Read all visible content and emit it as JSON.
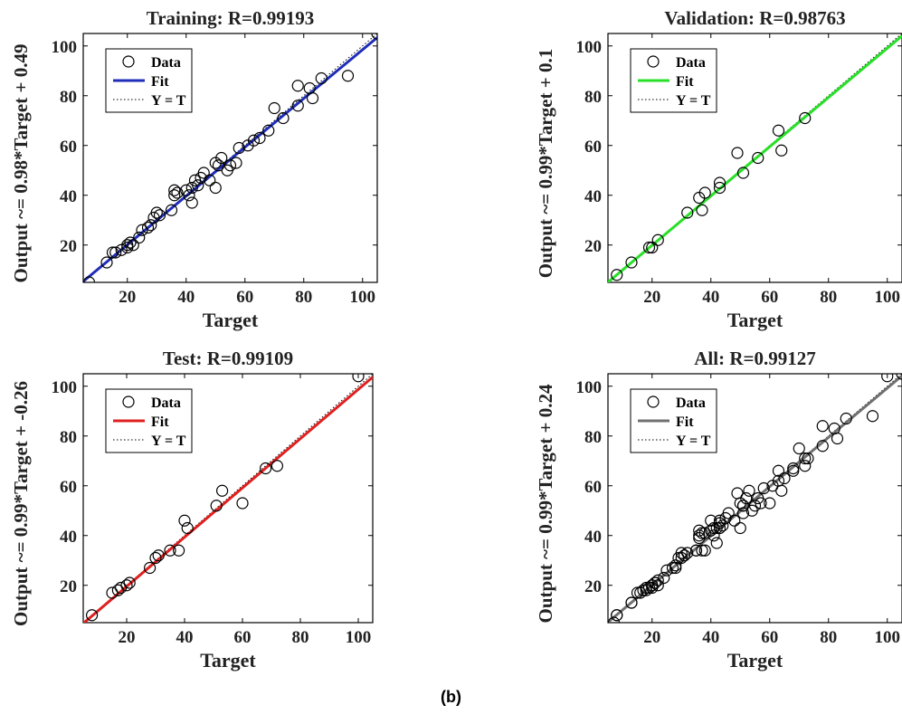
{
  "figure_caption": "(b)",
  "chart_data": [
    {
      "type": "scatter",
      "title": "Training: R=0.99193",
      "xlabel": "Target",
      "ylabel": "Output ~= 0.98*Target + 0.49",
      "xlim": [
        5,
        105
      ],
      "ylim": [
        5,
        105
      ],
      "xticks": [
        20,
        40,
        60,
        80,
        100
      ],
      "yticks": [
        20,
        40,
        60,
        80,
        100
      ],
      "legend": {
        "position": "top-left",
        "entries": [
          "Data",
          "Fit",
          "Y = T"
        ]
      },
      "fit_color": "#1f2db8",
      "fit": {
        "slope": 0.98,
        "intercept": 0.49
      },
      "points": [
        [
          7,
          5
        ],
        [
          13,
          13
        ],
        [
          15,
          17
        ],
        [
          16,
          17
        ],
        [
          18,
          18
        ],
        [
          20,
          19
        ],
        [
          20,
          20
        ],
        [
          21,
          21
        ],
        [
          22,
          20
        ],
        [
          24,
          23
        ],
        [
          25,
          26
        ],
        [
          27,
          27
        ],
        [
          28,
          28
        ],
        [
          29,
          31
        ],
        [
          30,
          33
        ],
        [
          31,
          32
        ],
        [
          35,
          34
        ],
        [
          36,
          42
        ],
        [
          36,
          40
        ],
        [
          37,
          41
        ],
        [
          40,
          42
        ],
        [
          41,
          40
        ],
        [
          42,
          37
        ],
        [
          42,
          43
        ],
        [
          43,
          46
        ],
        [
          44,
          44
        ],
        [
          45,
          47
        ],
        [
          46,
          49
        ],
        [
          48,
          46
        ],
        [
          50,
          43
        ],
        [
          50,
          53
        ],
        [
          51,
          52
        ],
        [
          52,
          55
        ],
        [
          54,
          50
        ],
        [
          55,
          52
        ],
        [
          57,
          53
        ],
        [
          58,
          59
        ],
        [
          61,
          60
        ],
        [
          63,
          62
        ],
        [
          65,
          63
        ],
        [
          68,
          66
        ],
        [
          70,
          75
        ],
        [
          73,
          71
        ],
        [
          78,
          84
        ],
        [
          78,
          76
        ],
        [
          82,
          83
        ],
        [
          83,
          79
        ],
        [
          86,
          87
        ],
        [
          95,
          88
        ],
        [
          105,
          105
        ]
      ]
    },
    {
      "type": "scatter",
      "title": "Validation: R=0.98763",
      "xlabel": "Target",
      "ylabel": "Output ~= 0.99*Target + 0.1",
      "xlim": [
        5,
        105
      ],
      "ylim": [
        5,
        105
      ],
      "xticks": [
        20,
        40,
        60,
        80,
        100
      ],
      "yticks": [
        20,
        40,
        60,
        80,
        100
      ],
      "legend": {
        "position": "top-left",
        "entries": [
          "Data",
          "Fit",
          "Y = T"
        ]
      },
      "fit_color": "#28e028",
      "fit": {
        "slope": 0.99,
        "intercept": 0.1
      },
      "points": [
        [
          8,
          8
        ],
        [
          13,
          13
        ],
        [
          19,
          19
        ],
        [
          20,
          19
        ],
        [
          22,
          22
        ],
        [
          32,
          33
        ],
        [
          36,
          39
        ],
        [
          37,
          34
        ],
        [
          38,
          41
        ],
        [
          43,
          45
        ],
        [
          43,
          43
        ],
        [
          49,
          57
        ],
        [
          51,
          49
        ],
        [
          56,
          55
        ],
        [
          63,
          66
        ],
        [
          64,
          58
        ],
        [
          72,
          71
        ]
      ]
    },
    {
      "type": "scatter",
      "title": "Test: R=0.99109",
      "xlabel": "Target",
      "ylabel": "Output ~= 0.99*Target + -0.26",
      "xlim": [
        5,
        105
      ],
      "ylim": [
        5,
        105
      ],
      "xticks": [
        20,
        40,
        60,
        80,
        100
      ],
      "yticks": [
        20,
        40,
        60,
        80,
        100
      ],
      "legend": {
        "position": "top-left",
        "entries": [
          "Data",
          "Fit",
          "Y = T"
        ]
      },
      "fit_color": "#e02020",
      "fit": {
        "slope": 0.99,
        "intercept": -0.26
      },
      "points": [
        [
          8,
          8
        ],
        [
          15,
          17
        ],
        [
          17,
          18
        ],
        [
          18,
          19
        ],
        [
          20,
          20
        ],
        [
          21,
          21
        ],
        [
          28,
          27
        ],
        [
          30,
          31
        ],
        [
          31,
          32
        ],
        [
          35,
          34
        ],
        [
          38,
          34
        ],
        [
          40,
          46
        ],
        [
          41,
          43
        ],
        [
          51,
          52
        ],
        [
          53,
          58
        ],
        [
          60,
          53
        ],
        [
          68,
          67
        ],
        [
          72,
          68
        ],
        [
          100,
          104
        ]
      ]
    },
    {
      "type": "scatter",
      "title": "All: R=0.99127",
      "xlabel": "Target",
      "ylabel": "Output ~= 0.99*Target + 0.24",
      "xlim": [
        5,
        105
      ],
      "ylim": [
        5,
        105
      ],
      "xticks": [
        20,
        40,
        60,
        80,
        100
      ],
      "yticks": [
        20,
        40,
        60,
        80,
        100
      ],
      "legend": {
        "position": "top-left",
        "entries": [
          "Data",
          "Fit",
          "Y = T"
        ]
      },
      "fit_color": "#707070",
      "fit": {
        "slope": 0.99,
        "intercept": 0.24
      },
      "points": [
        [
          7,
          5
        ],
        [
          8,
          8
        ],
        [
          8,
          8
        ],
        [
          13,
          13
        ],
        [
          13,
          13
        ],
        [
          15,
          17
        ],
        [
          16,
          17
        ],
        [
          17,
          18
        ],
        [
          18,
          18
        ],
        [
          18,
          19
        ],
        [
          19,
          19
        ],
        [
          20,
          19
        ],
        [
          20,
          20
        ],
        [
          20,
          20
        ],
        [
          21,
          21
        ],
        [
          21,
          21
        ],
        [
          22,
          20
        ],
        [
          22,
          22
        ],
        [
          24,
          23
        ],
        [
          25,
          26
        ],
        [
          27,
          27
        ],
        [
          28,
          27
        ],
        [
          28,
          28
        ],
        [
          29,
          31
        ],
        [
          30,
          33
        ],
        [
          30,
          31
        ],
        [
          31,
          32
        ],
        [
          31,
          32
        ],
        [
          32,
          33
        ],
        [
          35,
          34
        ],
        [
          35,
          34
        ],
        [
          36,
          42
        ],
        [
          36,
          40
        ],
        [
          36,
          39
        ],
        [
          37,
          41
        ],
        [
          37,
          34
        ],
        [
          38,
          34
        ],
        [
          38,
          41
        ],
        [
          40,
          42
        ],
        [
          40,
          46
        ],
        [
          41,
          40
        ],
        [
          41,
          43
        ],
        [
          42,
          37
        ],
        [
          42,
          43
        ],
        [
          43,
          46
        ],
        [
          43,
          45
        ],
        [
          43,
          43
        ],
        [
          44,
          44
        ],
        [
          45,
          47
        ],
        [
          46,
          49
        ],
        [
          48,
          46
        ],
        [
          49,
          57
        ],
        [
          50,
          43
        ],
        [
          50,
          53
        ],
        [
          51,
          52
        ],
        [
          51,
          49
        ],
        [
          51,
          52
        ],
        [
          52,
          55
        ],
        [
          53,
          58
        ],
        [
          54,
          50
        ],
        [
          55,
          52
        ],
        [
          56,
          55
        ],
        [
          57,
          53
        ],
        [
          58,
          59
        ],
        [
          60,
          53
        ],
        [
          61,
          60
        ],
        [
          63,
          62
        ],
        [
          63,
          66
        ],
        [
          64,
          58
        ],
        [
          65,
          63
        ],
        [
          68,
          66
        ],
        [
          68,
          67
        ],
        [
          70,
          75
        ],
        [
          72,
          71
        ],
        [
          72,
          68
        ],
        [
          73,
          71
        ],
        [
          78,
          84
        ],
        [
          78,
          76
        ],
        [
          82,
          83
        ],
        [
          83,
          79
        ],
        [
          86,
          87
        ],
        [
          95,
          88
        ],
        [
          100,
          104
        ],
        [
          105,
          105
        ]
      ]
    }
  ]
}
